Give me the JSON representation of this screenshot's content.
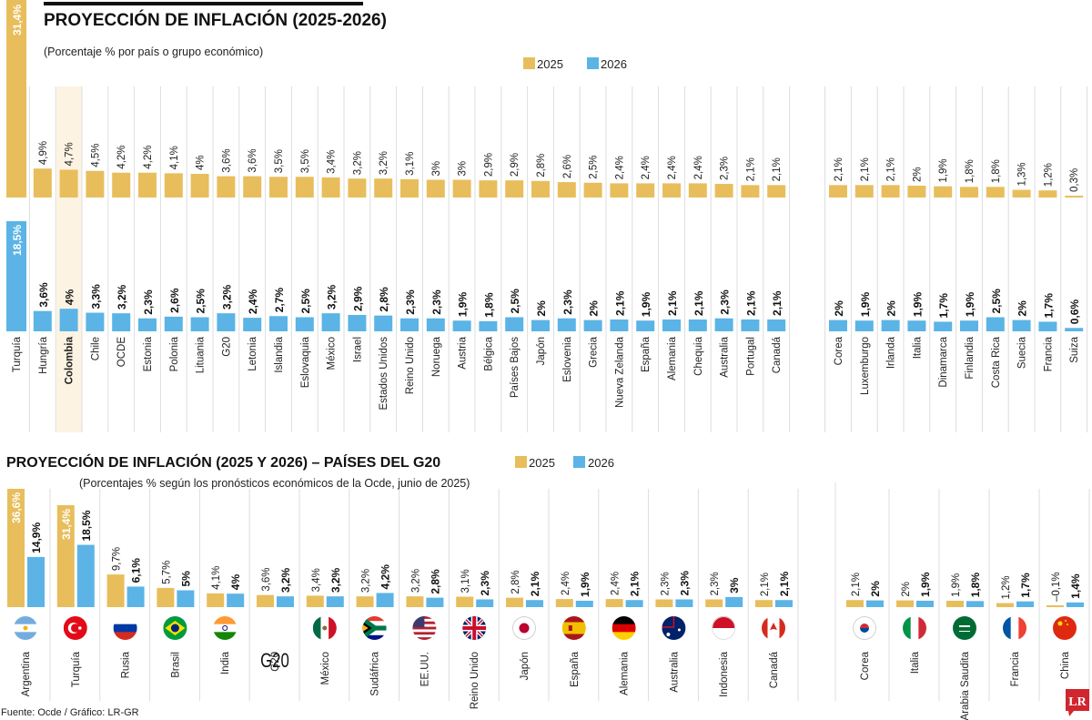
{
  "colors": {
    "y2025": "#E8BE5C",
    "y2026": "#5BB4E5",
    "highlight": "#FDF3E3",
    "brand": "#D0262D"
  },
  "chart_data": [
    {
      "type": "bar",
      "title": "PROYECCIÓN DE INFLACIÓN (2025-2026)",
      "subtitle": "(Porcentaje % por país o grupo económico)",
      "legend": [
        "2025",
        "2026"
      ],
      "legend_placement": "top-right",
      "highlight": "Colombia",
      "grid": false,
      "groups": [
        {
          "categories": [
            "Turquía",
            "Hungría",
            "Colombia",
            "Chile",
            "OCDE",
            "Estonia",
            "Polonia",
            "Lituania",
            "G20",
            "Letonia",
            "Islandia",
            "Eslovaquia",
            "México",
            "Israel",
            "Estados Unidos",
            "Reino Unido",
            "Noruega",
            "Austria",
            "Bélgica",
            "Países Bajos",
            "Japón",
            "Eslovenia",
            "Grecia",
            "Nueva Zelanda",
            "España",
            "Alemania",
            "Chequia",
            "Australia",
            "Portugal",
            "Canadá"
          ],
          "series": [
            {
              "name": "2025",
              "values": [
                31.4,
                4.9,
                4.7,
                4.5,
                4.2,
                4.2,
                4.1,
                4,
                3.6,
                3.6,
                3.5,
                3.5,
                3.4,
                3.2,
                3.2,
                3.1,
                3,
                3,
                2.9,
                2.9,
                2.8,
                2.6,
                2.5,
                2.4,
                2.4,
                2.4,
                2.4,
                2.3,
                2.1,
                2.1
              ]
            },
            {
              "name": "2026",
              "values": [
                18.5,
                3.6,
                4,
                3.3,
                3.2,
                2.3,
                2.6,
                2.5,
                3.2,
                2.4,
                2.7,
                2.5,
                3.2,
                2.9,
                2.8,
                2.3,
                2.3,
                1.9,
                1.8,
                2.5,
                2,
                2.3,
                2,
                2.1,
                1.9,
                2.1,
                2.1,
                2.3,
                2.1,
                2.1
              ]
            }
          ]
        },
        {
          "categories": [
            "Corea",
            "Luxemburgo",
            "Irlanda",
            "Italia",
            "Dinamarca",
            "Finlandia",
            "Costa Rica",
            "Suecia",
            "Francia",
            "Suiza"
          ],
          "series": [
            {
              "name": "2025",
              "values": [
                2.1,
                2.1,
                2.1,
                2,
                1.9,
                1.8,
                1.8,
                1.3,
                1.2,
                0.3
              ]
            },
            {
              "name": "2026",
              "values": [
                2,
                1.9,
                2,
                1.9,
                1.7,
                1.9,
                2.5,
                2,
                1.7,
                0.6
              ]
            }
          ]
        }
      ]
    },
    {
      "type": "bar",
      "title": "PROYECCIÓN DE INFLACIÓN (2025 Y 2026) – PAÍSES DEL G20",
      "subtitle": "(Porcentajes % según los pronósticos económicos de la Ocde, junio de 2025)",
      "legend": [
        "2025",
        "2026"
      ],
      "legend_placement": "top-center",
      "grid": false,
      "groups": [
        {
          "categories": [
            "Argentina",
            "Turquía",
            "Rusia",
            "Brasil",
            "India",
            "G20",
            "México",
            "Sudáfrica",
            "EE.UU.",
            "Reino Unido",
            "Japón",
            "España",
            "Alemania",
            "Australia",
            "Indonesia",
            "Canadá"
          ],
          "icons": [
            "flag-argentina",
            "flag-turkey",
            "flag-russia",
            "flag-brazil",
            "flag-india",
            "g20-text",
            "flag-mexico",
            "flag-south-africa",
            "flag-usa",
            "flag-uk",
            "flag-japan",
            "flag-spain",
            "flag-germany",
            "flag-australia",
            "flag-indonesia",
            "flag-canada"
          ],
          "series": [
            {
              "name": "2025",
              "values": [
                36.6,
                31.4,
                9.7,
                5.7,
                4.1,
                3.6,
                3.4,
                3.2,
                3.2,
                3.1,
                2.8,
                2.4,
                2.4,
                2.3,
                2.3,
                2.1
              ]
            },
            {
              "name": "2026",
              "values": [
                14.9,
                18.5,
                6.1,
                5,
                4,
                3.2,
                3.2,
                4.2,
                2.8,
                2.3,
                2.1,
                1.9,
                2.1,
                2.3,
                3,
                2.1
              ]
            }
          ]
        },
        {
          "categories": [
            "Corea",
            "Italia",
            "Arabia Saudita",
            "Francia",
            "China"
          ],
          "icons": [
            "flag-korea",
            "flag-italy",
            "flag-saudi-arabia",
            "flag-france",
            "flag-china"
          ],
          "series": [
            {
              "name": "2025",
              "values": [
                2.1,
                2,
                1.9,
                1.2,
                -0.1
              ]
            },
            {
              "name": "2026",
              "values": [
                2,
                1.9,
                1.8,
                1.7,
                1.4
              ]
            }
          ]
        }
      ]
    }
  ],
  "g20_icon_text": "G20",
  "footer": {
    "source": "Fuente: Ocde / Gráfico: LR-GR",
    "logo": "LR"
  }
}
